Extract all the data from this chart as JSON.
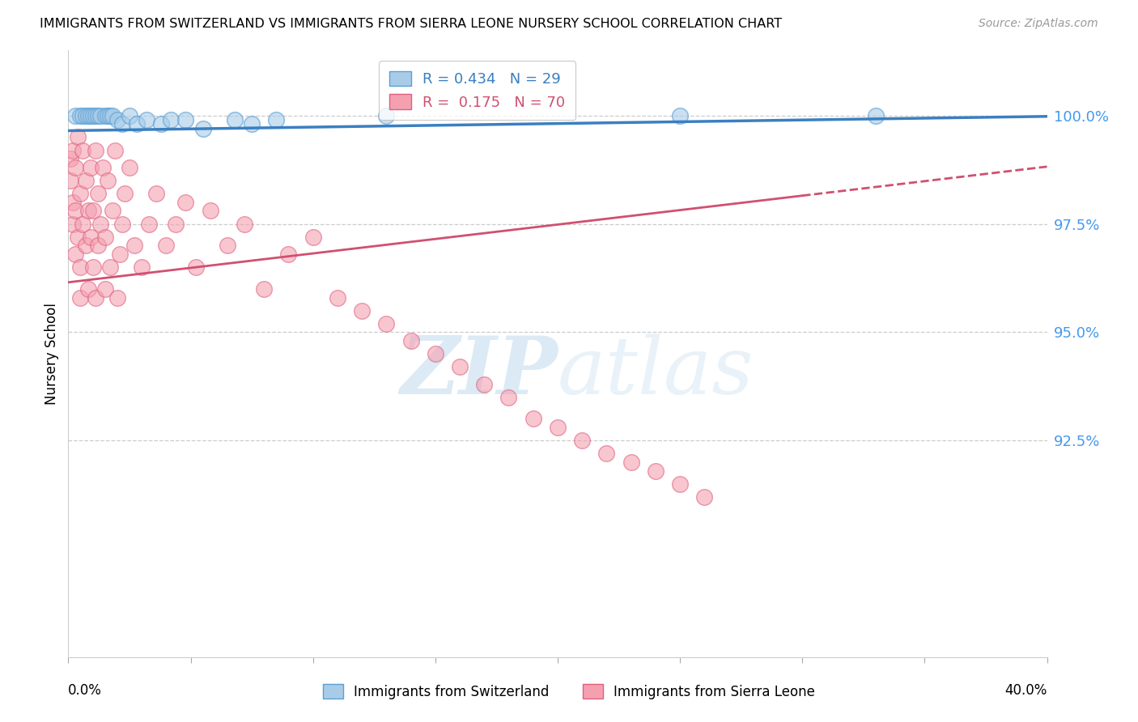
{
  "title": "IMMIGRANTS FROM SWITZERLAND VS IMMIGRANTS FROM SIERRA LEONE NURSERY SCHOOL CORRELATION CHART",
  "source": "Source: ZipAtlas.com",
  "ylabel": "Nursery School",
  "ytick_labels": [
    "100.0%",
    "97.5%",
    "95.0%",
    "92.5%"
  ],
  "ytick_values": [
    1.0,
    0.975,
    0.95,
    0.925
  ],
  "xlim": [
    0.0,
    0.4
  ],
  "ylim": [
    0.875,
    1.015
  ],
  "legend_r_switzerland": "R = 0.434",
  "legend_n_switzerland": "N = 29",
  "legend_r_sierra_leone": "R =  0.175",
  "legend_n_sierra_leone": "N = 70",
  "color_switzerland": "#a8cce8",
  "color_sierra_leone": "#f4a0b0",
  "edge_switzerland": "#5a9fd4",
  "edge_sierra_leone": "#e06080",
  "trendline_switzerland_color": "#3a7fc1",
  "trendline_sierra_leone_color": "#d05070",
  "background_color": "#ffffff",
  "watermark_zip": "ZIP",
  "watermark_atlas": "atlas",
  "swiss_x": [
    0.003,
    0.005,
    0.006,
    0.007,
    0.008,
    0.009,
    0.01,
    0.011,
    0.012,
    0.013,
    0.015,
    0.016,
    0.017,
    0.018,
    0.02,
    0.022,
    0.025,
    0.028,
    0.032,
    0.038,
    0.042,
    0.048,
    0.055,
    0.068,
    0.075,
    0.085,
    0.13,
    0.25,
    0.33
  ],
  "swiss_y": [
    1.0,
    1.0,
    1.0,
    1.0,
    1.0,
    1.0,
    1.0,
    1.0,
    1.0,
    1.0,
    1.0,
    1.0,
    1.0,
    1.0,
    0.999,
    0.998,
    1.0,
    0.998,
    0.999,
    0.998,
    0.999,
    0.999,
    0.997,
    0.999,
    0.998,
    0.999,
    1.0,
    1.0,
    1.0
  ],
  "sl_x": [
    0.001,
    0.001,
    0.002,
    0.002,
    0.002,
    0.003,
    0.003,
    0.003,
    0.004,
    0.004,
    0.005,
    0.005,
    0.005,
    0.006,
    0.006,
    0.007,
    0.007,
    0.008,
    0.008,
    0.009,
    0.009,
    0.01,
    0.01,
    0.011,
    0.011,
    0.012,
    0.012,
    0.013,
    0.014,
    0.015,
    0.015,
    0.016,
    0.017,
    0.018,
    0.019,
    0.02,
    0.021,
    0.022,
    0.023,
    0.025,
    0.027,
    0.03,
    0.033,
    0.036,
    0.04,
    0.044,
    0.048,
    0.052,
    0.058,
    0.065,
    0.072,
    0.08,
    0.09,
    0.1,
    0.11,
    0.12,
    0.13,
    0.14,
    0.15,
    0.16,
    0.17,
    0.18,
    0.19,
    0.2,
    0.21,
    0.22,
    0.23,
    0.24,
    0.25,
    0.26
  ],
  "sl_y": [
    0.99,
    0.985,
    0.98,
    0.992,
    0.975,
    0.988,
    0.978,
    0.968,
    0.995,
    0.972,
    0.982,
    0.965,
    0.958,
    0.975,
    0.992,
    0.985,
    0.97,
    0.978,
    0.96,
    0.988,
    0.972,
    0.965,
    0.978,
    0.992,
    0.958,
    0.97,
    0.982,
    0.975,
    0.988,
    0.96,
    0.972,
    0.985,
    0.965,
    0.978,
    0.992,
    0.958,
    0.968,
    0.975,
    0.982,
    0.988,
    0.97,
    0.965,
    0.975,
    0.982,
    0.97,
    0.975,
    0.98,
    0.965,
    0.978,
    0.97,
    0.975,
    0.96,
    0.968,
    0.972,
    0.958,
    0.955,
    0.952,
    0.948,
    0.945,
    0.942,
    0.938,
    0.935,
    0.93,
    0.928,
    0.925,
    0.922,
    0.92,
    0.918,
    0.915,
    0.912
  ],
  "trendline_swiss_x0": 0.0,
  "trendline_swiss_y0": 0.9965,
  "trendline_swiss_x1": 0.4,
  "trendline_swiss_y1": 0.9998,
  "trendline_sl_x0": 0.0,
  "trendline_sl_y0": 0.9615,
  "trendline_sl_x1": 0.3,
  "trendline_sl_y1": 0.9815,
  "trendline_sl_dash_x0": 0.3,
  "trendline_sl_dash_y0": 0.9815,
  "trendline_sl_dash_x1": 0.4,
  "trendline_sl_dash_y1": 0.9882
}
